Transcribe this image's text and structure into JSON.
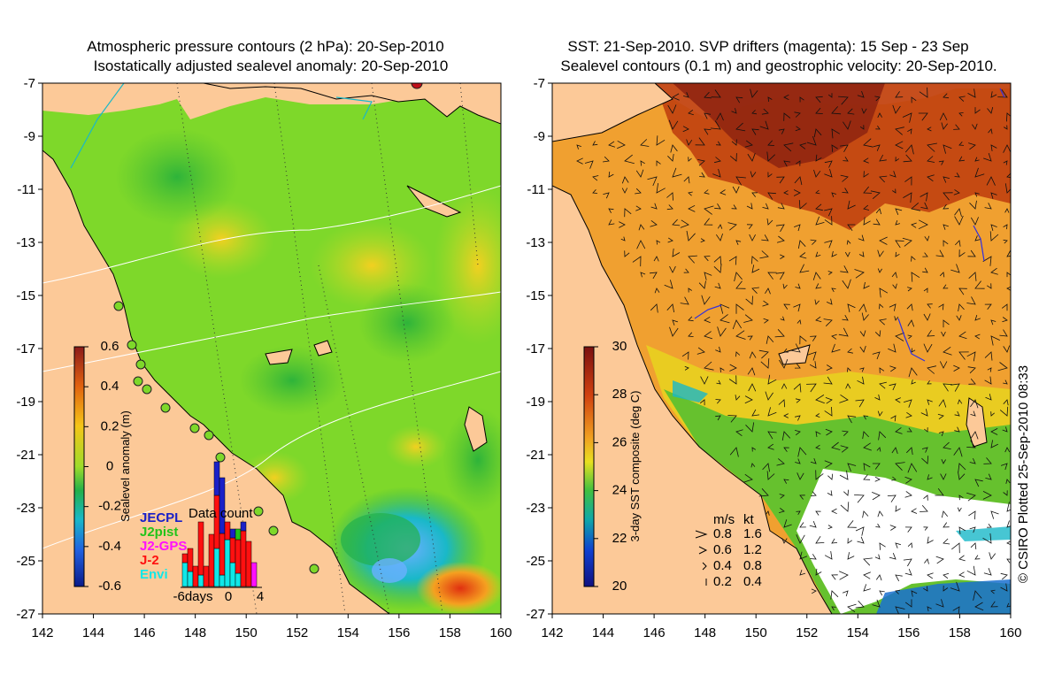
{
  "left_panel": {
    "title_line1": "Atmospheric pressure contours (2 hPa): 20-Sep-2010",
    "title_line2": "Isostatically adjusted sealevel anomaly: 20-Sep-2010",
    "y_ticks": [
      "-7",
      "-9",
      "-11",
      "-13",
      "-15",
      "-17",
      "-19",
      "-21",
      "-23",
      "-25",
      "-27"
    ],
    "x_ticks": [
      "142",
      "144",
      "146",
      "148",
      "150",
      "152",
      "154",
      "156",
      "158",
      "160"
    ],
    "colorbar": {
      "label": "Sealevel anomaly (m)",
      "ticks": [
        "0.6",
        "0.4",
        "0.2",
        "0",
        "-0.2",
        "-0.4",
        "-0.6"
      ],
      "colors": [
        "#8b1a1a",
        "#e06010",
        "#f5c518",
        "#9edc2a",
        "#22b04a",
        "#19b8c8",
        "#2060e0",
        "#0a1a8a"
      ]
    },
    "inset": {
      "title": "Data count",
      "legend": [
        {
          "name": "JECPL",
          "color": "#1a20c8"
        },
        {
          "name": "J2pist",
          "color": "#22c41a"
        },
        {
          "name": "J2-GPS",
          "color": "#ff10ff"
        },
        {
          "name": "J-2",
          "color": "#ff1010"
        },
        {
          "name": "Envi",
          "color": "#10e8e8"
        }
      ],
      "x_labels": [
        "-6days",
        "0",
        "4"
      ]
    }
  },
  "right_panel": {
    "title_line1": "SST: 21-Sep-2010. SVP drifters (magenta): 15 Sep - 23 Sep",
    "title_line2": "Sealevel contours (0.1 m) and geostrophic velocity: 20-Sep-2010.",
    "y_ticks": [
      "-7",
      "-9",
      "-11",
      "-13",
      "-15",
      "-17",
      "-19",
      "-21",
      "-23",
      "-25",
      "-27"
    ],
    "x_ticks": [
      "142",
      "144",
      "146",
      "148",
      "150",
      "152",
      "154",
      "156",
      "158",
      "160"
    ],
    "colorbar": {
      "label": "3-day SST composite (deg C)",
      "ticks": [
        "30",
        "28",
        "26",
        "24",
        "22",
        "20"
      ],
      "colors": [
        "#7a1010",
        "#d04010",
        "#f0a020",
        "#e8e020",
        "#40c040",
        "#10a8a8",
        "#1040d0",
        "#101080"
      ]
    },
    "velocity_legend": {
      "unit_ms": "m/s",
      "unit_kt": "kt",
      "rows": [
        {
          "ms": "0.8",
          "kt": "1.6"
        },
        {
          "ms": "0.6",
          "kt": "1.2"
        },
        {
          "ms": "0.4",
          "kt": "0.8"
        },
        {
          "ms": "0.2",
          "kt": "0.4"
        }
      ]
    }
  },
  "credit": "© CSIRO Plotted 25-Sep-2010 08:33",
  "colors": {
    "land": "#fcc998",
    "ocean_green": "#7ed82a",
    "sst_orange": "#f0a030"
  }
}
